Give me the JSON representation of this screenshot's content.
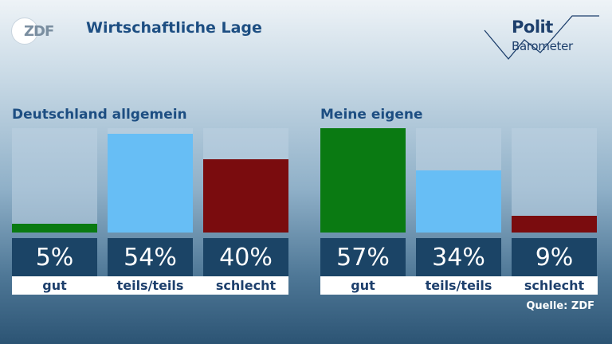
{
  "header": {
    "logo_text": "ZDF",
    "title": "Wirtschaftliche Lage",
    "brand_line1": "Polit",
    "brand_line2": "Barometer"
  },
  "source": "Quelle: ZDF",
  "colors": {
    "gut": "#0a7a12",
    "teils": "#67bef5",
    "schlecht": "#7a0c0e",
    "value_box": "#1b4466"
  },
  "chart_data": [
    {
      "type": "bar",
      "title": "Deutschland allgemein",
      "categories": [
        "gut",
        "teils/teils",
        "schlecht"
      ],
      "values": [
        5,
        54,
        40
      ],
      "value_labels": [
        "5%",
        "54%",
        "40%"
      ],
      "ylim": [
        0,
        57
      ]
    },
    {
      "type": "bar",
      "title": "Meine eigene",
      "categories": [
        "gut",
        "teils/teils",
        "schlecht"
      ],
      "values": [
        57,
        34,
        9
      ],
      "value_labels": [
        "57%",
        "34%",
        "9%"
      ],
      "ylim": [
        0,
        57
      ]
    }
  ]
}
